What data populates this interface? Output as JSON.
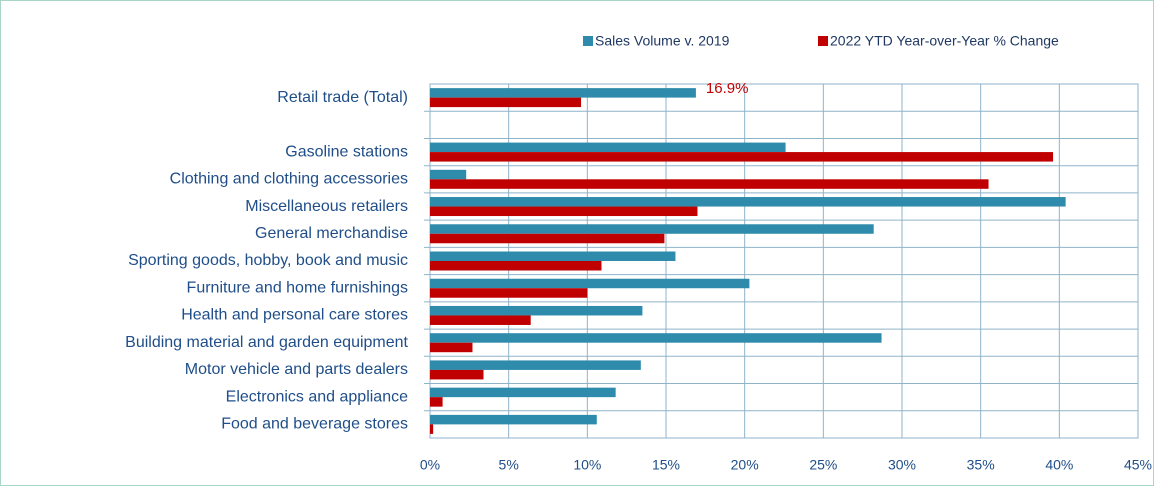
{
  "chart_data": {
    "type": "bar",
    "orientation": "horizontal",
    "categories": [
      "Retail trade (Total)",
      null,
      "Gasoline stations",
      "Clothing and clothing accessories",
      "Miscellaneous  retailers",
      "General merchandise",
      "Sporting goods, hobby, book and music",
      "Furniture and home furnishings",
      "Health and personal care stores",
      "Building material and garden equipment",
      "Motor vehicle and parts dealers",
      "Electronics and appliance",
      "Food and beverage stores"
    ],
    "series": [
      {
        "name": "Sales Volume v. 2019",
        "color": "#2e8bab",
        "values": [
          16.9,
          null,
          22.6,
          2.3,
          40.4,
          28.2,
          15.6,
          20.3,
          13.5,
          28.7,
          13.4,
          11.8,
          10.6
        ],
        "value_labels": [
          "16.9%",
          null,
          null,
          null,
          null,
          null,
          null,
          null,
          null,
          null,
          null,
          null,
          null
        ],
        "value_label_color": "#c00000"
      },
      {
        "name": "2022 YTD Year-over-Year % Change",
        "color": "#c00000",
        "values": [
          9.6,
          null,
          39.6,
          35.5,
          17.0,
          14.9,
          10.9,
          10.0,
          6.4,
          2.7,
          3.4,
          0.8,
          0.2
        ]
      }
    ],
    "xlim": [
      0,
      45
    ],
    "xticks": [
      {
        "value": 0,
        "label": "0%"
      },
      {
        "value": 5,
        "label": "5%"
      },
      {
        "value": 10,
        "label": "10%"
      },
      {
        "value": 15,
        "label": "15%"
      },
      {
        "value": 20,
        "label": "20%"
      },
      {
        "value": 25,
        "label": "25%"
      },
      {
        "value": 30,
        "label": "30%"
      },
      {
        "value": 35,
        "label": "35%"
      },
      {
        "value": 40,
        "label": "40%"
      },
      {
        "value": 45,
        "label": "45%"
      }
    ],
    "grid": true,
    "legend": "top"
  }
}
